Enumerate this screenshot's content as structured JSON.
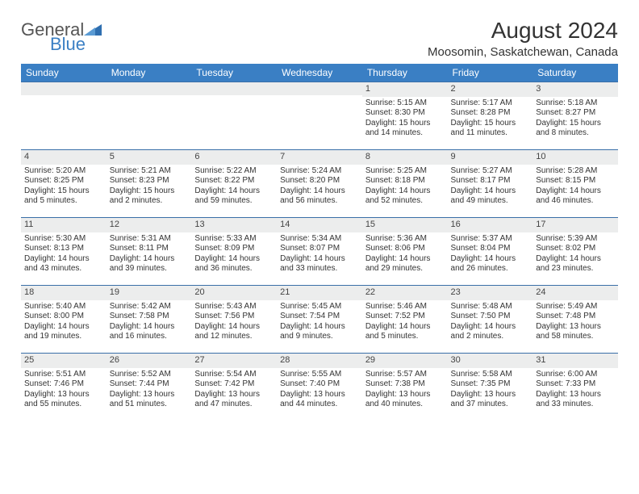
{
  "brand": {
    "part1": "General",
    "part2": "Blue"
  },
  "header": {
    "month_title": "August 2024",
    "location": "Moosomin, Saskatchewan, Canada"
  },
  "colors": {
    "header_bg": "#3a7fc4",
    "header_text": "#ffffff",
    "daynum_bg": "#eceded",
    "row_border": "#3a6fa8",
    "text": "#333333",
    "brand_blue": "#3a7fc4",
    "brand_gray": "#555555",
    "page_bg": "#ffffff"
  },
  "day_headers": [
    "Sunday",
    "Monday",
    "Tuesday",
    "Wednesday",
    "Thursday",
    "Friday",
    "Saturday"
  ],
  "weeks": [
    [
      {
        "n": "",
        "sr": "",
        "ss": "",
        "dl": ""
      },
      {
        "n": "",
        "sr": "",
        "ss": "",
        "dl": ""
      },
      {
        "n": "",
        "sr": "",
        "ss": "",
        "dl": ""
      },
      {
        "n": "",
        "sr": "",
        "ss": "",
        "dl": ""
      },
      {
        "n": "1",
        "sr": "Sunrise: 5:15 AM",
        "ss": "Sunset: 8:30 PM",
        "dl": "Daylight: 15 hours and 14 minutes."
      },
      {
        "n": "2",
        "sr": "Sunrise: 5:17 AM",
        "ss": "Sunset: 8:28 PM",
        "dl": "Daylight: 15 hours and 11 minutes."
      },
      {
        "n": "3",
        "sr": "Sunrise: 5:18 AM",
        "ss": "Sunset: 8:27 PM",
        "dl": "Daylight: 15 hours and 8 minutes."
      }
    ],
    [
      {
        "n": "4",
        "sr": "Sunrise: 5:20 AM",
        "ss": "Sunset: 8:25 PM",
        "dl": "Daylight: 15 hours and 5 minutes."
      },
      {
        "n": "5",
        "sr": "Sunrise: 5:21 AM",
        "ss": "Sunset: 8:23 PM",
        "dl": "Daylight: 15 hours and 2 minutes."
      },
      {
        "n": "6",
        "sr": "Sunrise: 5:22 AM",
        "ss": "Sunset: 8:22 PM",
        "dl": "Daylight: 14 hours and 59 minutes."
      },
      {
        "n": "7",
        "sr": "Sunrise: 5:24 AM",
        "ss": "Sunset: 8:20 PM",
        "dl": "Daylight: 14 hours and 56 minutes."
      },
      {
        "n": "8",
        "sr": "Sunrise: 5:25 AM",
        "ss": "Sunset: 8:18 PM",
        "dl": "Daylight: 14 hours and 52 minutes."
      },
      {
        "n": "9",
        "sr": "Sunrise: 5:27 AM",
        "ss": "Sunset: 8:17 PM",
        "dl": "Daylight: 14 hours and 49 minutes."
      },
      {
        "n": "10",
        "sr": "Sunrise: 5:28 AM",
        "ss": "Sunset: 8:15 PM",
        "dl": "Daylight: 14 hours and 46 minutes."
      }
    ],
    [
      {
        "n": "11",
        "sr": "Sunrise: 5:30 AM",
        "ss": "Sunset: 8:13 PM",
        "dl": "Daylight: 14 hours and 43 minutes."
      },
      {
        "n": "12",
        "sr": "Sunrise: 5:31 AM",
        "ss": "Sunset: 8:11 PM",
        "dl": "Daylight: 14 hours and 39 minutes."
      },
      {
        "n": "13",
        "sr": "Sunrise: 5:33 AM",
        "ss": "Sunset: 8:09 PM",
        "dl": "Daylight: 14 hours and 36 minutes."
      },
      {
        "n": "14",
        "sr": "Sunrise: 5:34 AM",
        "ss": "Sunset: 8:07 PM",
        "dl": "Daylight: 14 hours and 33 minutes."
      },
      {
        "n": "15",
        "sr": "Sunrise: 5:36 AM",
        "ss": "Sunset: 8:06 PM",
        "dl": "Daylight: 14 hours and 29 minutes."
      },
      {
        "n": "16",
        "sr": "Sunrise: 5:37 AM",
        "ss": "Sunset: 8:04 PM",
        "dl": "Daylight: 14 hours and 26 minutes."
      },
      {
        "n": "17",
        "sr": "Sunrise: 5:39 AM",
        "ss": "Sunset: 8:02 PM",
        "dl": "Daylight: 14 hours and 23 minutes."
      }
    ],
    [
      {
        "n": "18",
        "sr": "Sunrise: 5:40 AM",
        "ss": "Sunset: 8:00 PM",
        "dl": "Daylight: 14 hours and 19 minutes."
      },
      {
        "n": "19",
        "sr": "Sunrise: 5:42 AM",
        "ss": "Sunset: 7:58 PM",
        "dl": "Daylight: 14 hours and 16 minutes."
      },
      {
        "n": "20",
        "sr": "Sunrise: 5:43 AM",
        "ss": "Sunset: 7:56 PM",
        "dl": "Daylight: 14 hours and 12 minutes."
      },
      {
        "n": "21",
        "sr": "Sunrise: 5:45 AM",
        "ss": "Sunset: 7:54 PM",
        "dl": "Daylight: 14 hours and 9 minutes."
      },
      {
        "n": "22",
        "sr": "Sunrise: 5:46 AM",
        "ss": "Sunset: 7:52 PM",
        "dl": "Daylight: 14 hours and 5 minutes."
      },
      {
        "n": "23",
        "sr": "Sunrise: 5:48 AM",
        "ss": "Sunset: 7:50 PM",
        "dl": "Daylight: 14 hours and 2 minutes."
      },
      {
        "n": "24",
        "sr": "Sunrise: 5:49 AM",
        "ss": "Sunset: 7:48 PM",
        "dl": "Daylight: 13 hours and 58 minutes."
      }
    ],
    [
      {
        "n": "25",
        "sr": "Sunrise: 5:51 AM",
        "ss": "Sunset: 7:46 PM",
        "dl": "Daylight: 13 hours and 55 minutes."
      },
      {
        "n": "26",
        "sr": "Sunrise: 5:52 AM",
        "ss": "Sunset: 7:44 PM",
        "dl": "Daylight: 13 hours and 51 minutes."
      },
      {
        "n": "27",
        "sr": "Sunrise: 5:54 AM",
        "ss": "Sunset: 7:42 PM",
        "dl": "Daylight: 13 hours and 47 minutes."
      },
      {
        "n": "28",
        "sr": "Sunrise: 5:55 AM",
        "ss": "Sunset: 7:40 PM",
        "dl": "Daylight: 13 hours and 44 minutes."
      },
      {
        "n": "29",
        "sr": "Sunrise: 5:57 AM",
        "ss": "Sunset: 7:38 PM",
        "dl": "Daylight: 13 hours and 40 minutes."
      },
      {
        "n": "30",
        "sr": "Sunrise: 5:58 AM",
        "ss": "Sunset: 7:35 PM",
        "dl": "Daylight: 13 hours and 37 minutes."
      },
      {
        "n": "31",
        "sr": "Sunrise: 6:00 AM",
        "ss": "Sunset: 7:33 PM",
        "dl": "Daylight: 13 hours and 33 minutes."
      }
    ]
  ]
}
